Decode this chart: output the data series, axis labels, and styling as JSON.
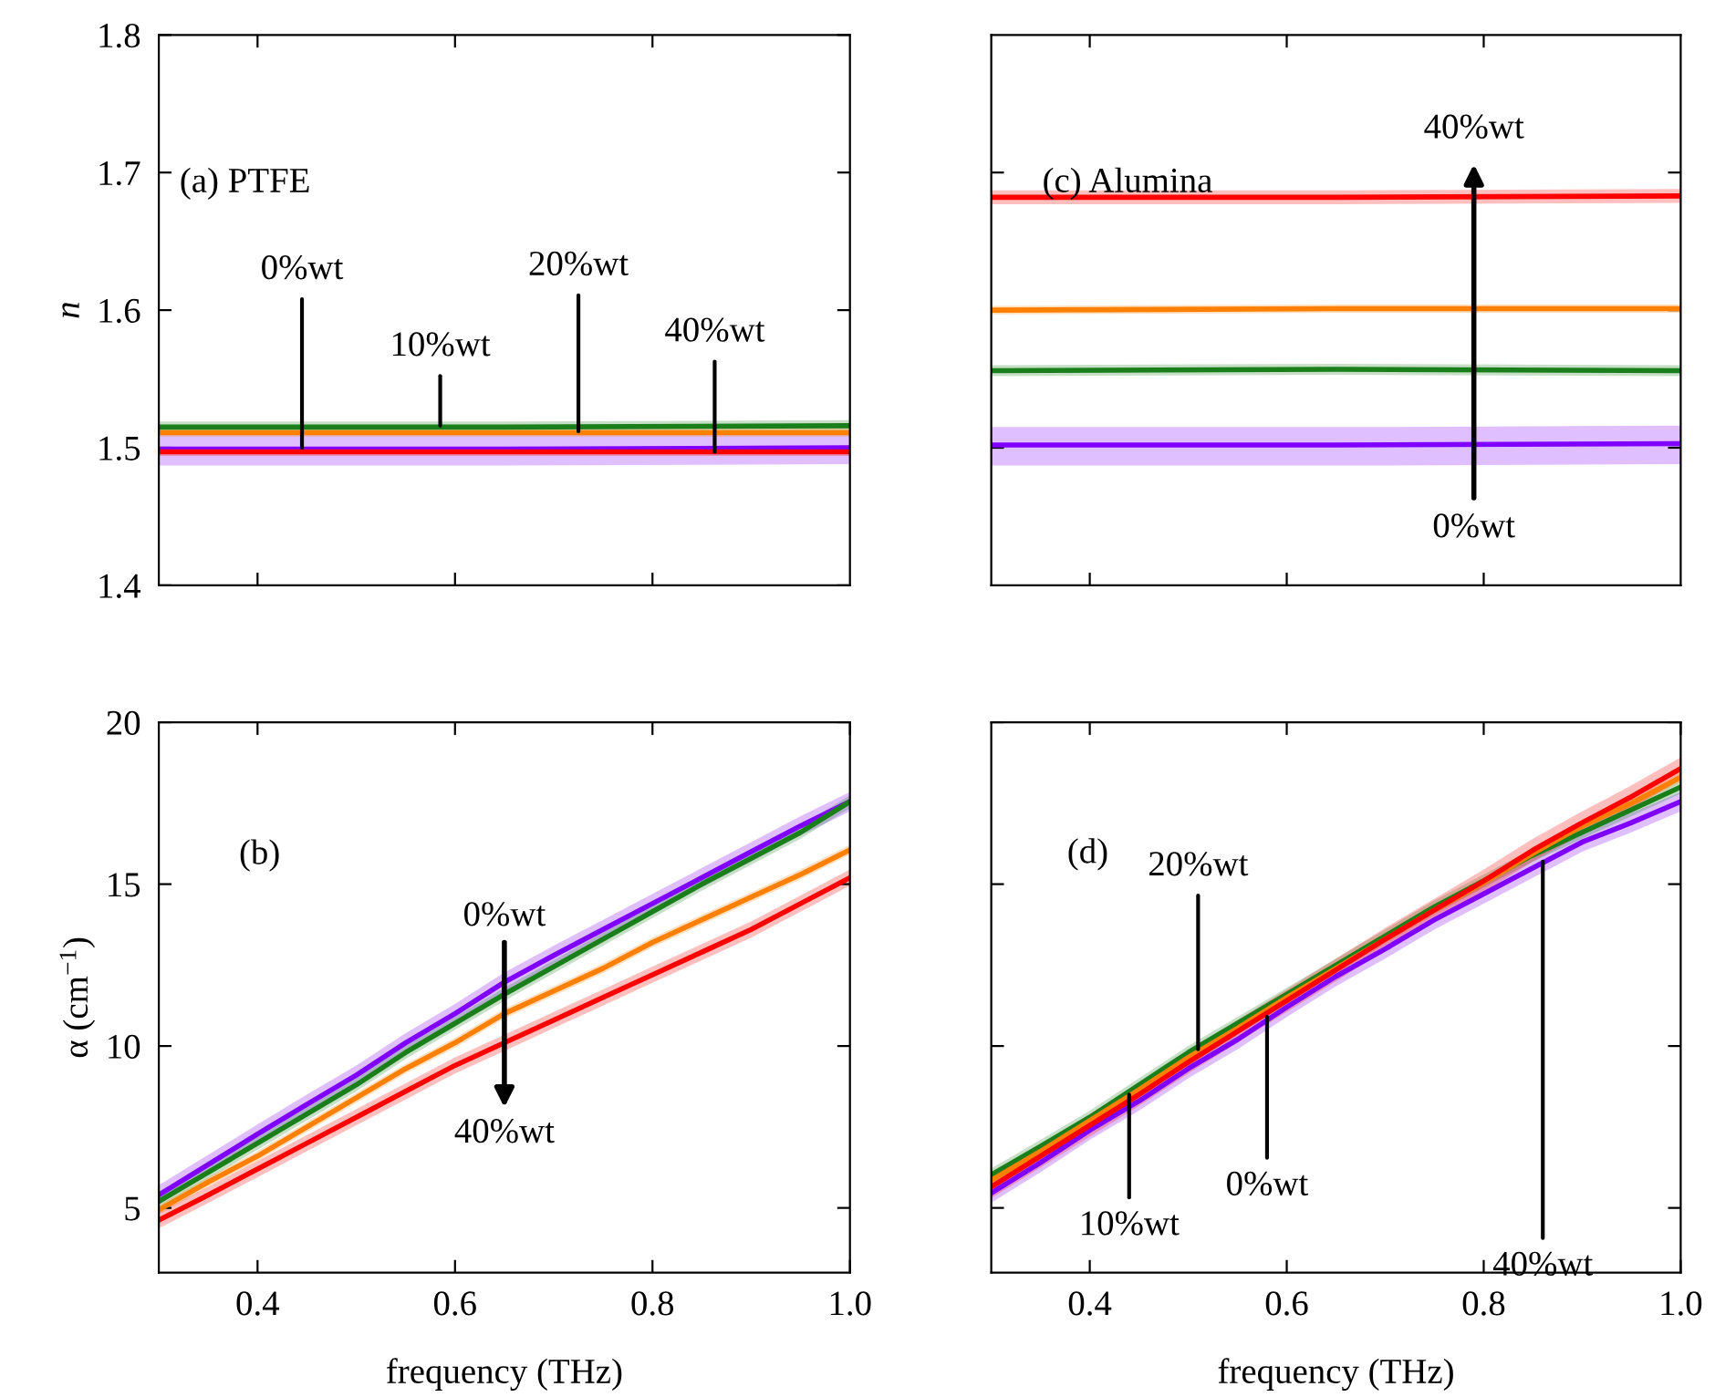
{
  "chart_data": [
    {
      "type": "line",
      "ylabel": "n",
      "x": [
        0.3,
        0.65,
        1.0
      ],
      "xlim": [
        0.3,
        1.0
      ],
      "ylim": [
        1.4,
        1.8
      ],
      "xticks": [
        0.4,
        0.6,
        0.8
      ],
      "yticks": [
        1.4,
        1.5,
        1.6,
        1.7,
        1.8
      ],
      "tick_labels": "y",
      "annotations": [
        "(a) PTFE",
        {
          "text": "0%wt",
          "x": 0.445,
          "y": 1.5
        },
        {
          "text": "10%wt",
          "x": 0.585,
          "y": 1.516
        },
        {
          "text": "20%wt",
          "x": 0.725,
          "y": 1.512
        },
        {
          "text": "40%wt",
          "x": 0.863,
          "y": 1.497
        }
      ],
      "series": [
        {
          "color": "#7f00ff",
          "values": [
            1.499,
            1.499,
            1.5
          ],
          "lower": [
            1.487,
            1.487,
            1.488
          ],
          "upper": [
            1.511,
            1.511,
            1.512
          ]
        },
        {
          "color": "#1a7f1a",
          "values": [
            1.515,
            1.515,
            1.516
          ],
          "lower": [
            1.511,
            1.511,
            1.512
          ],
          "upper": [
            1.519,
            1.519,
            1.52
          ]
        },
        {
          "color": "#ff8000",
          "values": [
            1.511,
            1.511,
            1.511
          ],
          "lower": [
            1.508,
            1.508,
            1.508
          ],
          "upper": [
            1.514,
            1.514,
            1.514
          ]
        },
        {
          "color": "#ff0000",
          "values": [
            1.497,
            1.497,
            1.497
          ],
          "lower": [
            1.494,
            1.494,
            1.494
          ],
          "upper": [
            1.5,
            1.5,
            1.5
          ]
        }
      ]
    },
    {
      "type": "line",
      "xlabel": "frequency (THz)",
      "ylabel": "α (cm$^{−1}$)",
      "x": [
        0.3,
        0.35,
        0.4,
        0.45,
        0.5,
        0.55,
        0.6,
        0.65,
        0.7,
        0.75,
        0.8,
        0.85,
        0.9,
        0.95,
        1.0
      ],
      "xlim": [
        0.3,
        1.0
      ],
      "ylim": [
        3,
        20
      ],
      "xticks": [
        0.4,
        0.6,
        0.8,
        {
          "value": 1.0,
          "label": "1.0"
        }
      ],
      "yticks": [
        5,
        10,
        15,
        20
      ],
      "annotations": [
        "(b)",
        "0%wt",
        "40%wt"
      ],
      "series": [
        {
          "color": "#7f00ff",
          "values": [
            5.4,
            6.34,
            7.28,
            8.2,
            9.1,
            10.1,
            11.0,
            11.97,
            12.8,
            13.6,
            14.4,
            15.2,
            16.0,
            16.8,
            17.55
          ],
          "lower": [
            5.1,
            6.04,
            6.98,
            7.9,
            8.8,
            9.8,
            10.7,
            11.67,
            12.5,
            13.3,
            14.1,
            14.9,
            15.7,
            16.5,
            17.25
          ],
          "upper": [
            5.7,
            6.64,
            7.58,
            8.5,
            9.4,
            10.4,
            11.3,
            12.27,
            13.1,
            13.9,
            14.7,
            15.5,
            16.3,
            17.1,
            17.85
          ]
        },
        {
          "color": "#1a7f1a",
          "values": [
            5.2,
            6.1,
            7.0,
            7.9,
            8.8,
            9.8,
            10.7,
            11.6,
            12.45,
            13.3,
            14.15,
            15.0,
            15.8,
            16.6,
            17.55
          ],
          "lower": [
            5.0,
            5.9,
            6.8,
            7.7,
            8.6,
            9.6,
            10.5,
            11.4,
            12.25,
            13.1,
            13.95,
            14.8,
            15.6,
            16.4,
            17.35
          ],
          "upper": [
            5.4,
            6.3,
            7.2,
            8.1,
            9.0,
            10.0,
            10.9,
            11.8,
            12.65,
            13.5,
            14.35,
            15.2,
            16.0,
            16.8,
            17.75
          ]
        },
        {
          "color": "#ff8000",
          "values": [
            4.94,
            5.8,
            6.6,
            7.5,
            8.4,
            9.3,
            10.1,
            11.0,
            11.7,
            12.4,
            13.2,
            13.9,
            14.6,
            15.3,
            16.06
          ],
          "lower": [
            4.79,
            5.65,
            6.45,
            7.35,
            8.25,
            9.15,
            9.95,
            10.85,
            11.55,
            12.25,
            13.05,
            13.75,
            14.45,
            15.15,
            15.91
          ],
          "upper": [
            5.09,
            5.95,
            6.75,
            7.65,
            8.55,
            9.45,
            10.25,
            11.15,
            11.85,
            12.55,
            13.35,
            14.05,
            14.75,
            15.45,
            16.21
          ]
        },
        {
          "color": "#ff0000",
          "values": [
            4.62,
            5.4,
            6.2,
            7.0,
            7.8,
            8.6,
            9.4,
            10.1,
            10.8,
            11.5,
            12.2,
            12.9,
            13.6,
            14.4,
            15.2
          ],
          "lower": [
            4.37,
            5.15,
            5.95,
            6.75,
            7.55,
            8.35,
            9.15,
            9.85,
            10.55,
            11.25,
            11.95,
            12.65,
            13.35,
            14.15,
            14.95
          ],
          "upper": [
            4.87,
            5.65,
            6.45,
            7.25,
            8.05,
            8.85,
            9.65,
            10.35,
            11.05,
            11.75,
            12.45,
            13.15,
            13.85,
            14.65,
            15.45
          ]
        }
      ]
    },
    {
      "type": "line",
      "x": [
        0.3,
        0.65,
        1.0
      ],
      "xlim": [
        0.3,
        1.0
      ],
      "ylim": [
        1.4,
        1.8
      ],
      "xticks": [
        0.4,
        0.6,
        0.8
      ],
      "yticks": [
        1.5,
        1.6,
        1.7
      ],
      "tick_labels": false,
      "annotations": [
        "(c) Alumina",
        "40%wt",
        "0%wt"
      ],
      "series": [
        {
          "color": "#7f00ff",
          "values": [
            1.502,
            1.502,
            1.503
          ],
          "lower": [
            1.487,
            1.487,
            1.488
          ],
          "upper": [
            1.515,
            1.515,
            1.516
          ]
        },
        {
          "color": "#1a7f1a",
          "values": [
            1.556,
            1.557,
            1.556
          ],
          "lower": [
            1.552,
            1.553,
            1.552
          ],
          "upper": [
            1.56,
            1.561,
            1.56
          ]
        },
        {
          "color": "#ff8000",
          "values": [
            1.6,
            1.601,
            1.601
          ],
          "lower": [
            1.597,
            1.598,
            1.598
          ],
          "upper": [
            1.603,
            1.604,
            1.604
          ]
        },
        {
          "color": "#ff0000",
          "values": [
            1.682,
            1.682,
            1.683
          ],
          "lower": [
            1.677,
            1.677,
            1.678
          ],
          "upper": [
            1.687,
            1.687,
            1.688
          ]
        }
      ]
    },
    {
      "type": "line",
      "xlabel": "frequency (THz)",
      "x": [
        0.3,
        0.35,
        0.4,
        0.45,
        0.5,
        0.55,
        0.6,
        0.65,
        0.7,
        0.75,
        0.8,
        0.85,
        0.9,
        0.95,
        1.0
      ],
      "xlim": [
        0.3,
        1.0
      ],
      "ylim": [
        3,
        20
      ],
      "xticks": [
        0.4,
        0.6,
        0.8,
        {
          "value": 1.0,
          "label": "1.0"
        }
      ],
      "yticks": [
        5,
        10,
        15,
        20
      ],
      "tick_labels": "x",
      "annotations": [
        "(d)",
        {
          "text": "10%wt",
          "x": 0.44,
          "y": 8.5
        },
        {
          "text": "20%wt",
          "x": 0.51,
          "y": 9.9
        },
        {
          "text": "0%wt",
          "x": 0.58,
          "y": 10.9
        },
        {
          "text": "40%wt",
          "x": 0.86,
          "y": 15.7
        }
      ],
      "series": [
        {
          "color": "#7f00ff",
          "values": [
            5.46,
            6.4,
            7.4,
            8.3,
            9.3,
            10.2,
            11.2,
            12.15,
            13.0,
            13.9,
            14.7,
            15.5,
            16.3,
            16.9,
            17.55
          ],
          "lower": [
            5.16,
            6.1,
            7.1,
            8.0,
            9.0,
            9.9,
            10.9,
            11.85,
            12.7,
            13.6,
            14.4,
            15.2,
            16.0,
            16.6,
            17.25
          ],
          "upper": [
            5.76,
            6.7,
            7.7,
            8.6,
            9.6,
            10.5,
            11.5,
            12.45,
            13.3,
            14.2,
            15.0,
            15.8,
            16.6,
            17.2,
            17.85
          ]
        },
        {
          "color": "#1a7f1a",
          "values": [
            6.02,
            6.9,
            7.8,
            8.8,
            9.8,
            10.7,
            11.6,
            12.5,
            13.4,
            14.3,
            15.1,
            15.9,
            16.6,
            17.3,
            18.0
          ],
          "lower": [
            5.82,
            6.7,
            7.6,
            8.6,
            9.6,
            10.5,
            11.4,
            12.3,
            13.2,
            14.1,
            14.9,
            15.7,
            16.4,
            17.1,
            17.8
          ],
          "upper": [
            6.22,
            7.1,
            8.0,
            9.0,
            10.0,
            10.9,
            11.8,
            12.7,
            13.6,
            14.5,
            15.3,
            16.1,
            16.8,
            17.5,
            18.2
          ]
        },
        {
          "color": "#ff8000",
          "values": [
            5.85,
            6.75,
            7.7,
            8.65,
            9.65,
            10.55,
            11.5,
            12.4,
            13.3,
            14.2,
            15.05,
            15.95,
            16.8,
            17.5,
            18.3
          ],
          "lower": [
            5.7,
            6.6,
            7.55,
            8.5,
            9.5,
            10.4,
            11.35,
            12.25,
            13.15,
            14.05,
            14.9,
            15.8,
            16.65,
            17.35,
            18.15
          ],
          "upper": [
            6.0,
            6.9,
            7.85,
            8.8,
            9.8,
            10.7,
            11.65,
            12.55,
            13.45,
            14.35,
            15.2,
            16.1,
            16.95,
            17.65,
            18.45
          ]
        },
        {
          "color": "#ff0000",
          "values": [
            5.65,
            6.6,
            7.55,
            8.5,
            9.5,
            10.45,
            11.4,
            12.35,
            13.3,
            14.2,
            15.1,
            16.05,
            16.9,
            17.7,
            18.57
          ],
          "lower": [
            5.3,
            6.25,
            7.2,
            8.15,
            9.15,
            10.1,
            11.05,
            12.0,
            12.95,
            13.85,
            14.75,
            15.7,
            16.55,
            17.35,
            18.22
          ],
          "upper": [
            6.0,
            6.95,
            7.9,
            8.85,
            9.85,
            10.8,
            11.75,
            12.7,
            13.65,
            14.55,
            15.45,
            16.4,
            17.25,
            18.05,
            18.92
          ]
        }
      ]
    }
  ]
}
